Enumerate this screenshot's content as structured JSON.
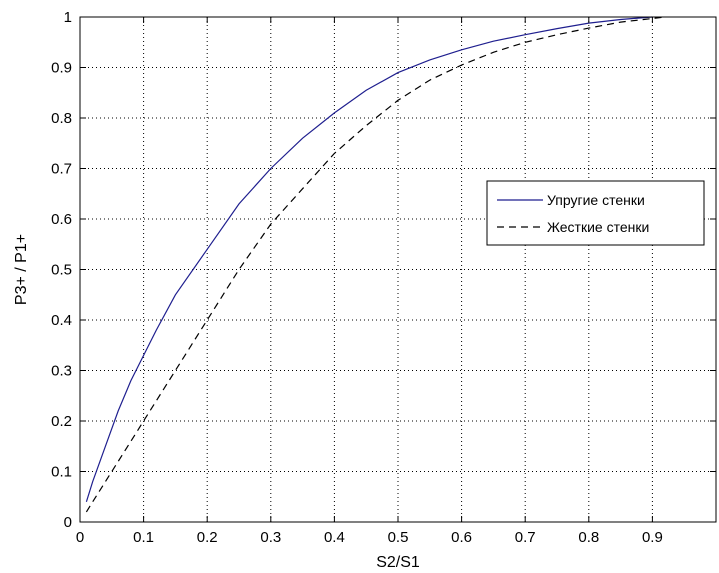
{
  "chart_data": {
    "type": "line",
    "title": "",
    "xlabel": "S2/S1",
    "ylabel": "P3+ / P1+",
    "xlim": [
      0,
      1
    ],
    "ylim": [
      0,
      1
    ],
    "grid": true,
    "legend_position": "right",
    "x_ticks": [
      "0",
      "0.1",
      "0.2",
      "0.3",
      "0.4",
      "0.5",
      "0.6",
      "0.7",
      "0.8",
      "0.9"
    ],
    "y_ticks": [
      "0",
      "0.1",
      "0.2",
      "0.3",
      "0.4",
      "0.5",
      "0.6",
      "0.7",
      "0.8",
      "0.9",
      "1"
    ],
    "series": [
      {
        "name": "Упругие стенки",
        "color": "#1f1f8f",
        "line_style": "solid",
        "x": [
          0.01,
          0.02,
          0.04,
          0.06,
          0.08,
          0.1,
          0.12,
          0.15,
          0.2,
          0.25,
          0.3,
          0.35,
          0.4,
          0.45,
          0.5,
          0.55,
          0.6,
          0.65,
          0.7,
          0.75,
          0.8,
          0.85,
          0.9
        ],
        "y": [
          0.04,
          0.08,
          0.15,
          0.22,
          0.28,
          0.33,
          0.38,
          0.45,
          0.54,
          0.63,
          0.7,
          0.76,
          0.81,
          0.855,
          0.89,
          0.915,
          0.935,
          0.952,
          0.965,
          0.977,
          0.988,
          0.995,
          1.0
        ]
      },
      {
        "name": "Жесткие стенки",
        "color": "#000000",
        "line_style": "dashed",
        "x": [
          0.01,
          0.02,
          0.04,
          0.06,
          0.08,
          0.1,
          0.12,
          0.15,
          0.2,
          0.25,
          0.3,
          0.35,
          0.4,
          0.45,
          0.5,
          0.55,
          0.6,
          0.65,
          0.7,
          0.75,
          0.8,
          0.85,
          0.9,
          0.92
        ],
        "y": [
          0.02,
          0.04,
          0.08,
          0.12,
          0.16,
          0.2,
          0.24,
          0.3,
          0.4,
          0.5,
          0.59,
          0.66,
          0.73,
          0.785,
          0.835,
          0.875,
          0.905,
          0.93,
          0.95,
          0.965,
          0.978,
          0.99,
          0.997,
          1.0
        ]
      }
    ]
  }
}
